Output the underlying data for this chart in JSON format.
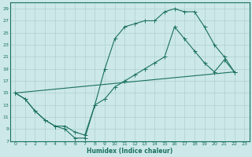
{
  "xlabel": "Humidex (Indice chaleur)",
  "bg_color": "#cce8e8",
  "line_color": "#1a7060",
  "grid_color": "#b0d0d0",
  "xlim": [
    -0.5,
    23.5
  ],
  "ylim": [
    7,
    30
  ],
  "yticks": [
    7,
    9,
    11,
    13,
    15,
    17,
    19,
    21,
    23,
    25,
    27,
    29
  ],
  "xticks": [
    0,
    1,
    2,
    3,
    4,
    5,
    6,
    7,
    8,
    9,
    10,
    11,
    12,
    13,
    14,
    15,
    16,
    17,
    18,
    19,
    20,
    21,
    22,
    23
  ],
  "curve1_x": [
    0,
    1,
    2,
    3,
    4,
    5,
    6,
    7,
    8,
    9,
    10,
    11,
    12,
    13,
    14,
    15,
    16,
    17,
    18,
    19,
    20,
    21,
    22
  ],
  "curve1_y": [
    15,
    14,
    12,
    10.5,
    9.5,
    9.0,
    7.5,
    7.5,
    13,
    19,
    24,
    26,
    26.5,
    27,
    27,
    28.5,
    29,
    28.5,
    28.5,
    26,
    23,
    21,
    18.5
  ],
  "curve2_x": [
    0,
    1,
    2,
    3,
    4,
    5,
    6,
    7,
    8,
    9,
    10,
    11,
    12,
    13,
    14,
    15,
    16,
    17,
    18,
    19,
    20,
    21,
    22
  ],
  "curve2_y": [
    15,
    14,
    12,
    10.5,
    9.5,
    9.5,
    8.5,
    8.0,
    13,
    14,
    16,
    17,
    18,
    19,
    20,
    21,
    26,
    24,
    22,
    20,
    18.5,
    20.5,
    18.5
  ],
  "line3_x": [
    0,
    22
  ],
  "line3_y": [
    15,
    18.5
  ]
}
